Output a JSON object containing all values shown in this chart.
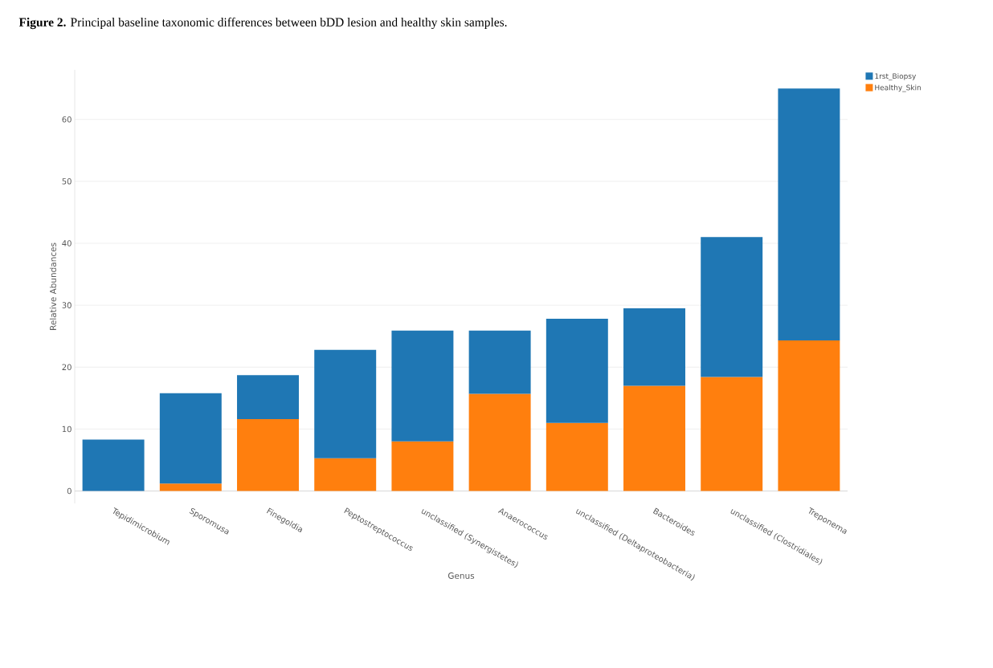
{
  "chart_data": {
    "type": "bar",
    "title": "**Figure 2.** Principal baseline taxonomic differences between bDD lesion and healthy skin samples.",
    "xlabel": "Genus",
    "ylabel": "Relative Abundances",
    "categories": [
      "Tepidimicrobium",
      "Sporomusa",
      "Finegoldia",
      "Peptostreptococcus",
      "unclassified (Synergistetes)",
      "Anaerococcus",
      "unclassified (Deltaproteobacteria)",
      "Bacteroides",
      "unclassified (Clostridiales)",
      "Treponema"
    ],
    "stacked": true,
    "series": [
      {
        "name": "Healthy_Skin",
        "color": "#ff7f0e",
        "values": [
          null,
          1.2,
          11.6,
          5.3,
          8.0,
          15.7,
          11.0,
          17.0,
          18.4,
          24.3
        ]
      },
      {
        "name": "1rst_Biopsy",
        "color": "#1f77b4",
        "values": [
          8.3,
          14.6,
          7.1,
          17.5,
          17.9,
          10.2,
          16.8,
          12.5,
          22.6,
          40.7
        ]
      }
    ],
    "ylim": [
      -2,
      68
    ],
    "yticks": [
      0,
      10,
      20,
      30,
      40,
      50,
      60
    ],
    "grid": "y",
    "legend": "top right"
  }
}
